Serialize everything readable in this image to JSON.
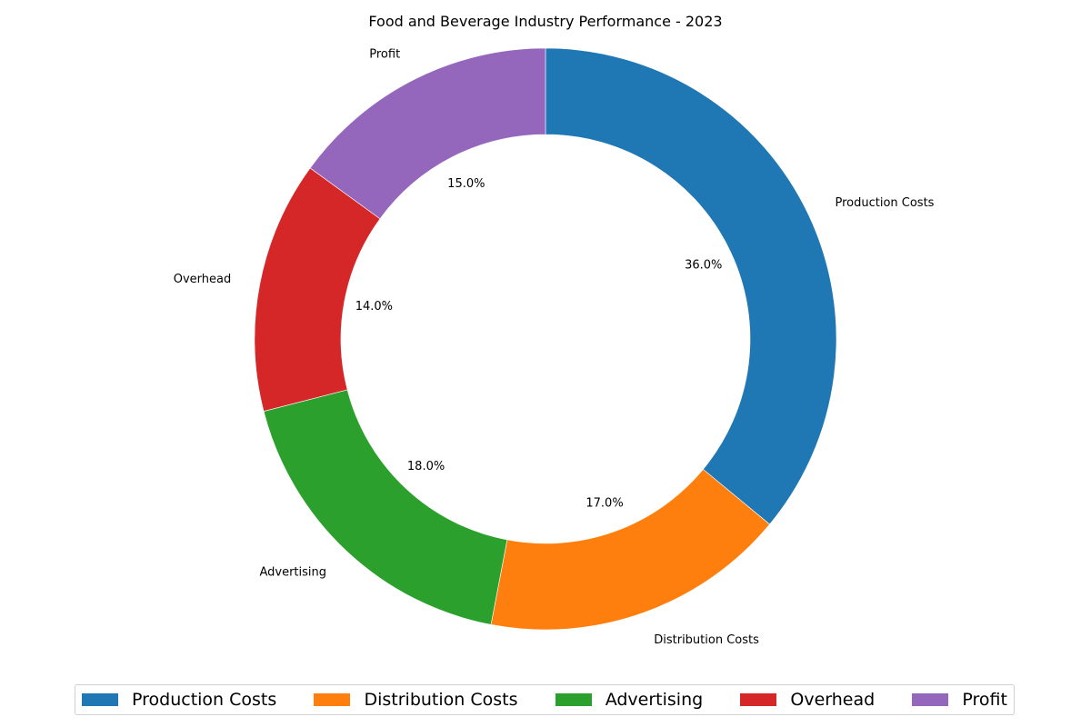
{
  "chart_data": {
    "type": "pie",
    "title": "Food and Beverage Industry Performance - 2023",
    "donut": true,
    "start": "top, clockwise",
    "categories": [
      "Production Costs",
      "Distribution Costs",
      "Advertising",
      "Overhead",
      "Profit"
    ],
    "values": [
      36,
      17,
      18,
      14,
      15
    ],
    "percent_labels": [
      "36.0%",
      "17.0%",
      "18.0%",
      "14.0%",
      "15.0%"
    ],
    "colors": [
      "#1f77b4",
      "#ff7f0e",
      "#2ca02c",
      "#d62728",
      "#9467bd"
    ],
    "legend": {
      "placement": "bottom",
      "entries": [
        "Production Costs",
        "Distribution Costs",
        "Advertising",
        "Overhead",
        "Profit"
      ]
    }
  }
}
